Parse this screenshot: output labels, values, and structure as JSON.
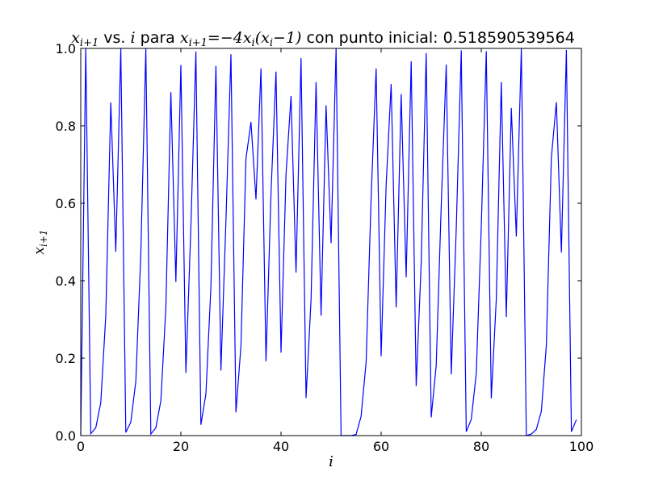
{
  "chart_data": {
    "type": "line",
    "title": {
      "lhs_math": "x",
      "lhs_sub": "i+1",
      "text_vs": " vs. ",
      "var_math": "i",
      "text_para": " para ",
      "eq_math": "x",
      "eq_sub": "i+1",
      "eq_rest": "=−4x",
      "eq_sub2": "i",
      "eq_rest2": "(x",
      "eq_sub3": "i",
      "eq_rest3": "−1)",
      "text_tail": " con punto inicial: 0.518590539564"
    },
    "xlabel": "i",
    "ylabel": {
      "base": "x",
      "sub": "i+1"
    },
    "xlim": [
      0,
      100
    ],
    "ylim": [
      0.0,
      1.0
    ],
    "xticks": [
      "0",
      "20",
      "40",
      "60",
      "80",
      "100"
    ],
    "yticks": [
      "0.0",
      "0.2",
      "0.4",
      "0.6",
      "0.8",
      "1.0"
    ],
    "line_color": "#0000ff",
    "grid": false,
    "legend": "none",
    "series": [
      {
        "x": [
          0,
          1,
          2,
          3,
          4,
          5,
          6,
          7,
          8,
          9,
          10,
          11,
          12,
          13,
          14,
          15,
          16,
          17,
          18,
          19,
          20,
          21,
          22,
          23,
          24,
          25,
          26,
          27,
          28,
          29,
          30,
          31,
          32,
          33,
          34,
          35,
          36,
          37,
          38,
          39,
          40,
          41,
          42,
          43,
          44,
          45,
          46,
          47,
          48,
          49,
          50,
          51,
          52,
          53,
          54,
          55,
          56,
          57,
          58,
          59,
          60,
          61,
          62,
          63,
          64,
          65,
          66,
          67,
          68,
          69,
          70,
          71,
          72,
          73,
          74,
          75,
          76,
          77,
          78,
          79,
          80,
          81,
          82,
          83,
          84,
          85,
          86,
          87,
          88,
          89,
          90,
          91,
          92,
          93,
          94,
          95,
          96,
          97,
          98,
          99
        ],
        "y": [
          0.0,
          1.0,
          0.005,
          0.02,
          0.085,
          0.31,
          0.86,
          0.475,
          1.0,
          0.008,
          0.035,
          0.14,
          0.47,
          1.0,
          0.004,
          0.02,
          0.09,
          0.33,
          0.887,
          0.397,
          0.957,
          0.162,
          0.54,
          0.992,
          0.028,
          0.108,
          0.385,
          0.955,
          0.168,
          0.555,
          0.985,
          0.06,
          0.232,
          0.715,
          0.81,
          0.61,
          0.948,
          0.192,
          0.625,
          0.94,
          0.214,
          0.675,
          0.877,
          0.421,
          0.975,
          0.097,
          0.351,
          0.913,
          0.31,
          0.853,
          0.497,
          1.0,
          0.0,
          0.0,
          0.0,
          0.003,
          0.05,
          0.19,
          0.614,
          0.948,
          0.205,
          0.647,
          0.908,
          0.331,
          0.882,
          0.409,
          0.967,
          0.128,
          0.446,
          0.988,
          0.047,
          0.181,
          0.593,
          0.958,
          0.158,
          0.533,
          0.995,
          0.01,
          0.042,
          0.16,
          0.539,
          0.993,
          0.096,
          0.352,
          0.913,
          0.306,
          0.846,
          0.514,
          0.999,
          0.0,
          0.004,
          0.016,
          0.063,
          0.234,
          0.718,
          0.861,
          0.473,
          0.996,
          0.01,
          0.041
        ]
      }
    ]
  }
}
